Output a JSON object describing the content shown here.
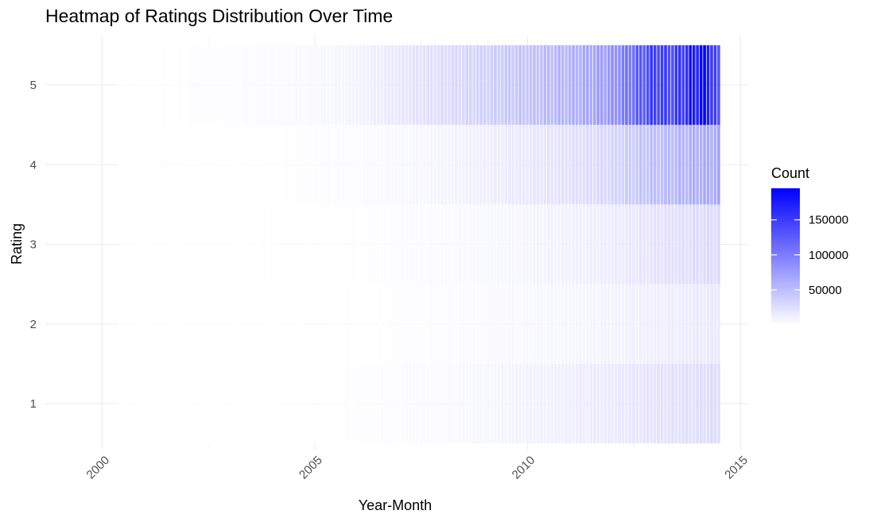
{
  "chart_data": {
    "type": "heatmap",
    "title": "Heatmap of Ratings Distribution Over Time",
    "xlabel": "Year-Month",
    "ylabel": "Rating",
    "x_ticks": [
      "2000",
      "2005",
      "2010",
      "2015"
    ],
    "y_ticks": [
      "1",
      "2",
      "3",
      "4",
      "5"
    ],
    "xlim": [
      "1998-09",
      "2015-03"
    ],
    "x_range_data": [
      "2000-06",
      "2014-07"
    ],
    "y_categories": [
      1,
      2,
      3,
      4,
      5
    ],
    "grid": true,
    "legend": {
      "title": "Count",
      "placement": "right",
      "ticks": [
        50000,
        100000,
        150000
      ],
      "tick_labels": [
        "50000",
        "100000",
        "150000"
      ],
      "min": 0,
      "max": 195000
    },
    "colors": {
      "low": "#ffffff",
      "high": "#0000ff"
    },
    "series": [
      {
        "rating": 1,
        "anchors": [
          [
            "2000-06",
            0
          ],
          [
            "2004-01",
            300
          ],
          [
            "2006-01",
            1200
          ],
          [
            "2007-01",
            2500
          ],
          [
            "2008-01",
            4000
          ],
          [
            "2009-01",
            6500
          ],
          [
            "2010-01",
            9500
          ],
          [
            "2011-01",
            12500
          ],
          [
            "2012-01",
            16000
          ],
          [
            "2013-01",
            21000
          ],
          [
            "2014-01",
            25000
          ],
          [
            "2014-07",
            27000
          ]
        ]
      },
      {
        "rating": 2,
        "anchors": [
          [
            "2000-06",
            0
          ],
          [
            "2004-01",
            200
          ],
          [
            "2006-01",
            700
          ],
          [
            "2007-01",
            1300
          ],
          [
            "2008-01",
            2200
          ],
          [
            "2009-01",
            3500
          ],
          [
            "2010-01",
            5200
          ],
          [
            "2011-01",
            7000
          ],
          [
            "2012-01",
            9000
          ],
          [
            "2013-01",
            12500
          ],
          [
            "2014-01",
            15500
          ],
          [
            "2014-07",
            17000
          ]
        ]
      },
      {
        "rating": 3,
        "anchors": [
          [
            "2000-06",
            100
          ],
          [
            "2004-01",
            400
          ],
          [
            "2006-01",
            1100
          ],
          [
            "2007-01",
            2000
          ],
          [
            "2008-01",
            3200
          ],
          [
            "2009-01",
            5000
          ],
          [
            "2010-01",
            7500
          ],
          [
            "2011-01",
            10500
          ],
          [
            "2012-01",
            14000
          ],
          [
            "2013-01",
            21000
          ],
          [
            "2014-01",
            26000
          ],
          [
            "2014-07",
            28000
          ]
        ]
      },
      {
        "rating": 4,
        "anchors": [
          [
            "2000-06",
            200
          ],
          [
            "2004-01",
            900
          ],
          [
            "2006-01",
            2500
          ],
          [
            "2007-01",
            5000
          ],
          [
            "2008-01",
            8000
          ],
          [
            "2009-01",
            12000
          ],
          [
            "2010-01",
            17000
          ],
          [
            "2011-01",
            23000
          ],
          [
            "2012-01",
            31000
          ],
          [
            "2013-01",
            50000
          ],
          [
            "2014-01",
            62000
          ],
          [
            "2014-07",
            66000
          ]
        ]
      },
      {
        "rating": 5,
        "anchors": [
          [
            "2000-06",
            600
          ],
          [
            "2003-01",
            1500
          ],
          [
            "2005-01",
            5000
          ],
          [
            "2006-01",
            9000
          ],
          [
            "2007-01",
            18000
          ],
          [
            "2008-01",
            26000
          ],
          [
            "2009-01",
            35000
          ],
          [
            "2010-01",
            46000
          ],
          [
            "2011-01",
            58000
          ],
          [
            "2012-01",
            80000
          ],
          [
            "2013-01",
            150000
          ],
          [
            "2013-06",
            140000
          ],
          [
            "2014-01",
            180000
          ],
          [
            "2014-03",
            195000
          ],
          [
            "2014-07",
            125000
          ]
        ]
      }
    ]
  }
}
